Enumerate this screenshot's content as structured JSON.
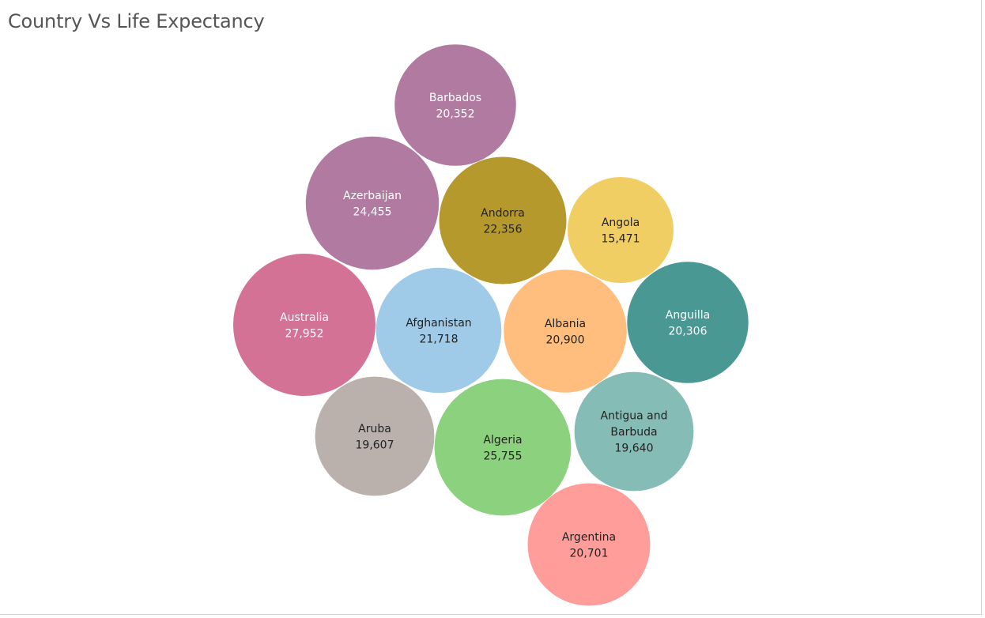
{
  "chart_data": {
    "type": "bubble",
    "title": "Country Vs Life Expectancy",
    "series": [
      {
        "name": "Barbados",
        "value": 20352,
        "label": "20,352",
        "color": "#b07aa1",
        "text_color": "#ffffff"
      },
      {
        "name": "Azerbaijan",
        "value": 24455,
        "label": "24,455",
        "color": "#b07aa1",
        "text_color": "#ffffff"
      },
      {
        "name": "Andorra",
        "value": 22356,
        "label": "22,356",
        "color": "#b6992d",
        "text_color": "#222222"
      },
      {
        "name": "Angola",
        "value": 15471,
        "label": "15,471",
        "color": "#f1ce63",
        "text_color": "#222222"
      },
      {
        "name": "Australia",
        "value": 27952,
        "label": "27,952",
        "color": "#d37295",
        "text_color": "#ffffff"
      },
      {
        "name": "Afghanistan",
        "value": 21718,
        "label": "21,718",
        "color": "#a0cbe8",
        "text_color": "#222222"
      },
      {
        "name": "Albania",
        "value": 20900,
        "label": "20,900",
        "color": "#ffbe7d",
        "text_color": "#222222"
      },
      {
        "name": "Anguilla",
        "value": 20306,
        "label": "20,306",
        "color": "#499894",
        "text_color": "#ffffff"
      },
      {
        "name": "Aruba",
        "value": 19607,
        "label": "19,607",
        "color": "#bab0ac",
        "text_color": "#222222"
      },
      {
        "name": "Algeria",
        "value": 25755,
        "label": "25,755",
        "color": "#8cd17d",
        "text_color": "#222222"
      },
      {
        "name": "Antigua and Barbuda",
        "value": 19640,
        "label": "19,640",
        "color": "#86bcb6",
        "text_color": "#222222"
      },
      {
        "name": "Argentina",
        "value": 20701,
        "label": "20,701",
        "color": "#ff9d9a",
        "text_color": "#222222"
      }
    ]
  }
}
